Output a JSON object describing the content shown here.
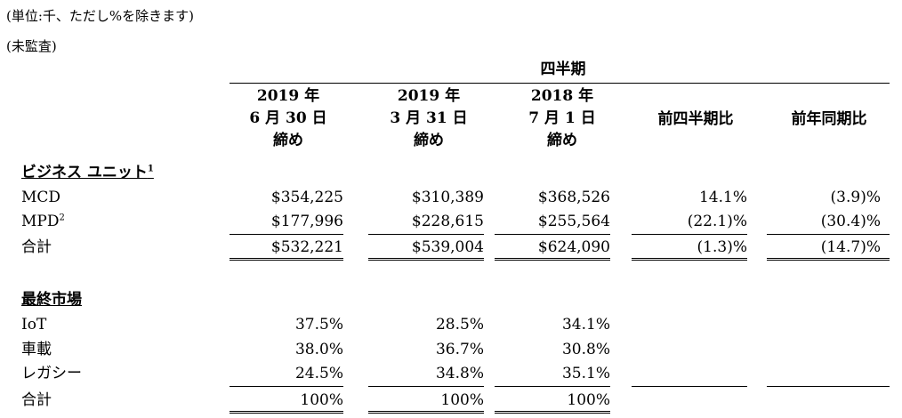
{
  "notes": {
    "unit": "(単位:千、ただし%を除きます)",
    "audit": "(未監査)"
  },
  "header": {
    "quarter_group": "四半期",
    "columns": [
      {
        "line1": "2019 年",
        "line2": "6 月 30 日",
        "line3": "締め"
      },
      {
        "line1": "2019 年",
        "line2": "3 月 31 日",
        "line3": "締め"
      },
      {
        "line1": "2018 年",
        "line2": "7 月 1 日",
        "line3": "締め"
      }
    ],
    "qoq": "前四半期比",
    "yoy": "前年同期比"
  },
  "business": {
    "title": "ビジネス ユニット",
    "title_sup": "1",
    "rows": [
      {
        "label": "MCD",
        "sup": "",
        "c1": "$354,225",
        "c2": "$310,389",
        "c3": "$368,526",
        "qoq": "14.1%",
        "yoy": "(3.9)%"
      },
      {
        "label": "MPD",
        "sup": "2",
        "c1": "$177,996",
        "c2": "$228,615",
        "c3": "$255,564",
        "qoq": "(22.1)%",
        "yoy": "(30.4)%"
      }
    ],
    "total": {
      "label": "合計",
      "c1": "$532,221",
      "c2": "$539,004",
      "c3": "$624,090",
      "qoq": "(1.3)%",
      "yoy": "(14.7)%"
    }
  },
  "market": {
    "title": "最終市場",
    "rows": [
      {
        "label": "IoT",
        "c1": "37.5%",
        "c2": "28.5%",
        "c3": "34.1%"
      },
      {
        "label": "車載",
        "c1": "38.0%",
        "c2": "36.7%",
        "c3": "30.8%"
      },
      {
        "label": "レガシー",
        "c1": "24.5%",
        "c2": "34.8%",
        "c3": "35.1%"
      }
    ],
    "total": {
      "label": "合計",
      "c1": "100%",
      "c2": "100%",
      "c3": "100%"
    }
  }
}
